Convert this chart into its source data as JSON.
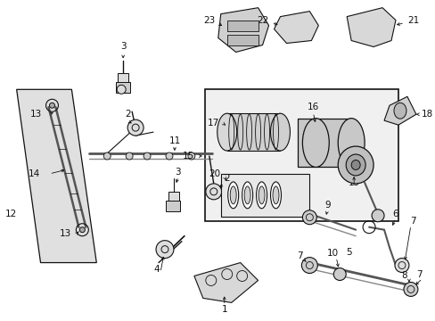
{
  "bg": "#ffffff",
  "lc": "#111111",
  "fig_w": 4.89,
  "fig_h": 3.6,
  "dpi": 100
}
